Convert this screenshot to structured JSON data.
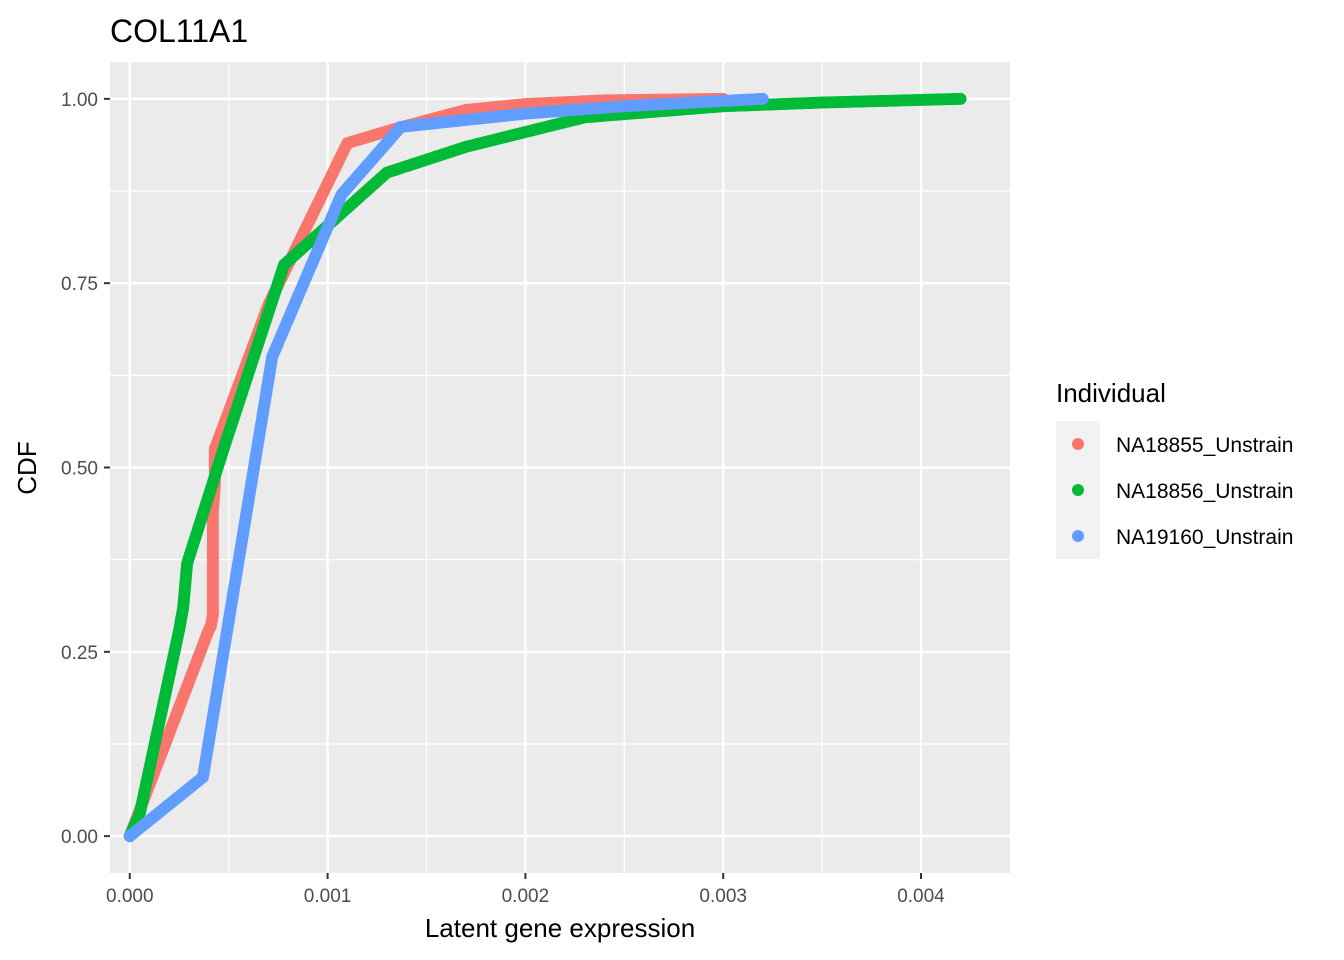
{
  "chart_data": {
    "type": "scatter",
    "title": "COL11A1",
    "xlabel": "Latent gene expression",
    "ylabel": "CDF",
    "xlim": [
      -0.0001,
      0.00445
    ],
    "ylim": [
      -0.05,
      1.05
    ],
    "x_ticks": [
      0.0,
      0.001,
      0.002,
      0.003,
      0.004
    ],
    "x_tick_labels": [
      "0.000",
      "0.001",
      "0.002",
      "0.003",
      "0.004"
    ],
    "y_ticks": [
      0.0,
      0.25,
      0.5,
      0.75,
      1.0
    ],
    "y_tick_labels": [
      "0.00",
      "0.25",
      "0.50",
      "0.75",
      "1.00"
    ],
    "grid": true,
    "background": "#ebebeb",
    "legend": {
      "title": "Individual",
      "position": "right"
    },
    "series": [
      {
        "name": "NA18855_Unstrain",
        "color": "#F8766D",
        "points": [
          [
            0.0,
            0.0
          ],
          [
            0.0002,
            0.14
          ],
          [
            0.0004,
            0.28
          ],
          [
            0.00041,
            0.285
          ],
          [
            0.00042,
            0.3
          ],
          [
            0.00042,
            0.333
          ],
          [
            0.00042,
            0.37
          ],
          [
            0.00042,
            0.405
          ],
          [
            0.00042,
            0.44
          ],
          [
            0.00043,
            0.475
          ],
          [
            0.00043,
            0.51
          ],
          [
            0.00043,
            0.525
          ],
          [
            0.0007,
            0.72
          ],
          [
            0.0011,
            0.94
          ],
          [
            0.00135,
            0.96
          ],
          [
            0.0017,
            0.985
          ],
          [
            0.002,
            0.993
          ],
          [
            0.0024,
            0.998
          ],
          [
            0.003,
            1.0
          ]
        ]
      },
      {
        "name": "NA18856_Unstrain",
        "color": "#00BA38",
        "points": [
          [
            0.0,
            0.0
          ],
          [
            5e-05,
            0.03
          ],
          [
            0.00025,
            0.28
          ],
          [
            0.00027,
            0.31
          ],
          [
            0.00028,
            0.34
          ],
          [
            0.00029,
            0.37
          ],
          [
            0.00048,
            0.53
          ],
          [
            0.00078,
            0.775
          ],
          [
            0.00105,
            0.84
          ],
          [
            0.0013,
            0.9
          ],
          [
            0.0017,
            0.935
          ],
          [
            0.0023,
            0.975
          ],
          [
            0.003,
            0.99
          ],
          [
            0.0035,
            0.995
          ],
          [
            0.0042,
            1.0
          ]
        ]
      },
      {
        "name": "NA19160_Unstrain",
        "color": "#619CFF",
        "points": [
          [
            0.0,
            0.0
          ],
          [
            0.00037,
            0.08
          ],
          [
            0.00072,
            0.65
          ],
          [
            0.00107,
            0.87
          ],
          [
            0.00137,
            0.962
          ],
          [
            0.002,
            0.98
          ],
          [
            0.0025,
            0.99
          ],
          [
            0.0032,
            1.0
          ]
        ]
      }
    ]
  }
}
